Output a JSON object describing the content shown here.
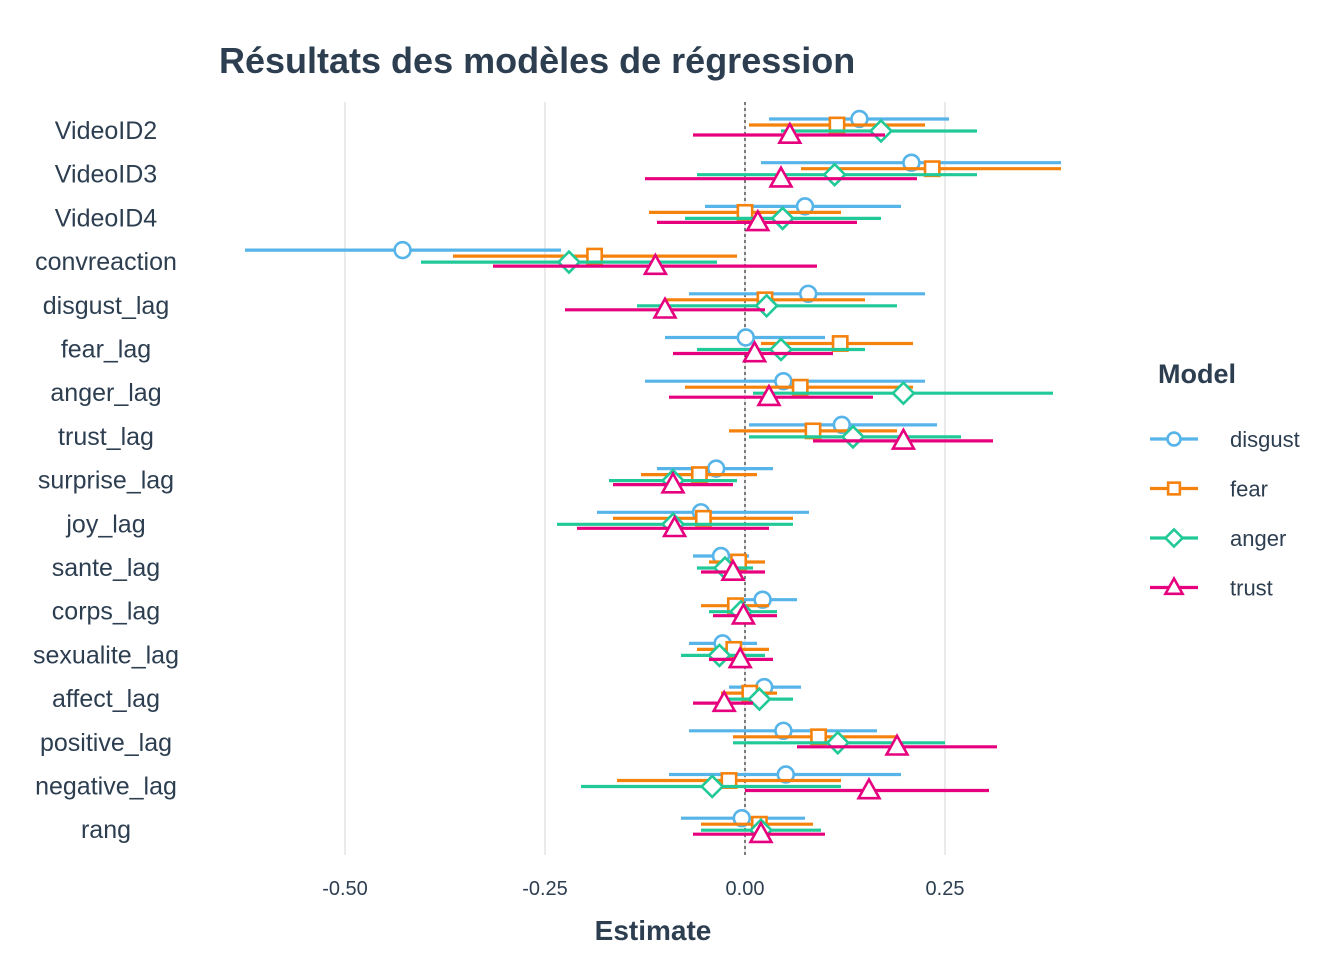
{
  "chart_data": {
    "type": "coefficient-plot",
    "title": "Résultats des modèles de régression",
    "xlabel": "Estimate",
    "ylabel": "",
    "xlim": [
      -0.6,
      0.4
    ],
    "xticks": [
      -0.5,
      -0.25,
      0.0,
      0.25
    ],
    "xtick_labels": [
      "-0.50",
      "-0.25",
      "0.00",
      "0.25"
    ],
    "zero_reference_line": "dashed",
    "grid": "vertical-major",
    "legend_position": "right",
    "legend_title": "Model",
    "terms": [
      "VideoID2",
      "VideoID3",
      "VideoID4",
      "convreaction",
      "disgust_lag",
      "fear_lag",
      "anger_lag",
      "trust_lag",
      "surprise_lag",
      "joy_lag",
      "sante_lag",
      "corps_lag",
      "sexualite_lag",
      "affect_lag",
      "positive_lag",
      "negative_lag",
      "rang"
    ],
    "series": [
      {
        "name": "disgust",
        "color": "#56b4e9",
        "marker": "circle",
        "estimate": [
          0.143,
          0.208,
          0.075,
          -0.428,
          0.079,
          0.001,
          0.048,
          0.121,
          -0.036,
          -0.055,
          -0.03,
          0.022,
          -0.028,
          0.024,
          0.048,
          0.051,
          -0.004
        ],
        "ci_low": [
          0.03,
          0.02,
          -0.05,
          -0.625,
          -0.07,
          -0.1,
          -0.125,
          0.005,
          -0.11,
          -0.185,
          -0.065,
          -0.02,
          -0.07,
          -0.02,
          -0.07,
          -0.095,
          -0.08
        ],
        "ci_high": [
          0.255,
          0.395,
          0.195,
          -0.23,
          0.225,
          0.1,
          0.225,
          0.24,
          0.035,
          0.08,
          0.005,
          0.065,
          0.015,
          0.07,
          0.165,
          0.195,
          0.075
        ]
      },
      {
        "name": "fear",
        "color": "#f5820c",
        "marker": "square",
        "estimate": [
          0.115,
          0.234,
          0.0,
          -0.188,
          0.025,
          0.119,
          0.069,
          0.085,
          -0.057,
          -0.052,
          -0.008,
          -0.012,
          -0.014,
          0.006,
          0.092,
          -0.02,
          0.018
        ],
        "ci_low": [
          0.005,
          0.07,
          -0.12,
          -0.365,
          -0.1,
          0.02,
          -0.075,
          -0.02,
          -0.13,
          -0.165,
          -0.045,
          -0.055,
          -0.06,
          -0.03,
          -0.015,
          -0.16,
          -0.055
        ],
        "ci_high": [
          0.225,
          0.395,
          0.12,
          -0.01,
          0.15,
          0.21,
          0.21,
          0.19,
          0.015,
          0.06,
          0.025,
          0.03,
          0.03,
          0.04,
          0.19,
          0.12,
          0.085
        ]
      },
      {
        "name": "anger",
        "color": "#20c997",
        "marker": "diamond",
        "estimate": [
          0.17,
          0.112,
          0.047,
          -0.22,
          0.027,
          0.045,
          0.198,
          0.135,
          -0.09,
          -0.09,
          -0.025,
          -0.005,
          -0.032,
          0.018,
          0.116,
          -0.041,
          0.02
        ],
        "ci_low": [
          0.045,
          -0.06,
          -0.075,
          -0.405,
          -0.135,
          -0.06,
          0.01,
          0.005,
          -0.17,
          -0.235,
          -0.06,
          -0.045,
          -0.08,
          -0.02,
          -0.015,
          -0.205,
          -0.055
        ],
        "ci_high": [
          0.29,
          0.29,
          0.17,
          -0.035,
          0.19,
          0.15,
          0.385,
          0.27,
          -0.01,
          0.06,
          0.01,
          0.04,
          0.025,
          0.06,
          0.25,
          0.12,
          0.095
        ]
      },
      {
        "name": "trust",
        "color": "#e6007e",
        "marker": "triangle",
        "estimate": [
          0.056,
          0.045,
          0.016,
          -0.112,
          -0.1,
          0.012,
          0.03,
          0.198,
          -0.09,
          -0.088,
          -0.015,
          -0.002,
          -0.006,
          -0.026,
          0.19,
          0.155,
          0.02
        ],
        "ci_low": [
          -0.065,
          -0.125,
          -0.11,
          -0.315,
          -0.225,
          -0.09,
          -0.095,
          0.085,
          -0.165,
          -0.21,
          -0.055,
          -0.04,
          -0.045,
          -0.065,
          0.065,
          0.0,
          -0.065
        ],
        "ci_high": [
          0.175,
          0.215,
          0.14,
          0.09,
          0.025,
          0.11,
          0.16,
          0.31,
          -0.015,
          0.03,
          0.025,
          0.04,
          0.035,
          0.01,
          0.315,
          0.305,
          0.1
        ]
      }
    ]
  }
}
